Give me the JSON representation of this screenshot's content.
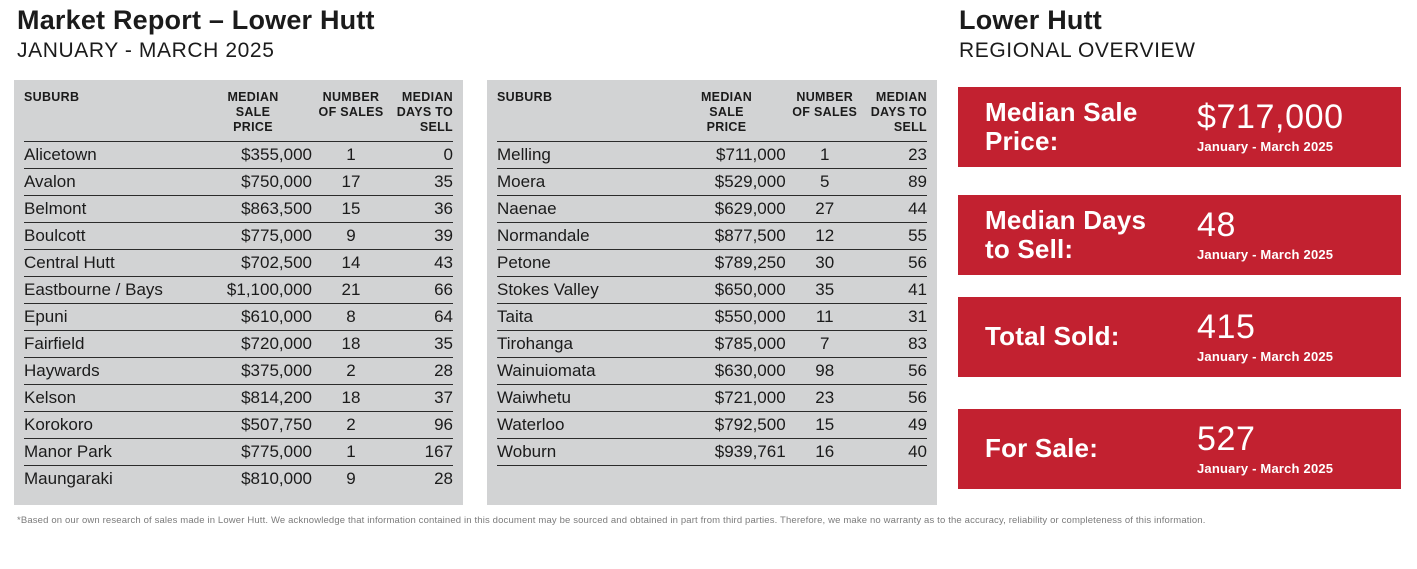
{
  "page": {
    "title": "Market Report – Lower Hutt",
    "subtitle": "JANUARY - MARCH 2025",
    "footnote": "*Based on our own research of sales made in Lower Hutt. We acknowledge that information contained in this document may be sourced and obtained in part from third parties. Therefore, we make no warranty as to the accuracy, reliability or completeness of this information."
  },
  "tables": {
    "headers": {
      "suburb": "SUBURB",
      "price": "MEDIAN\nSALE\nPRICE",
      "sales": "NUMBER\nOF SALES",
      "days": "MEDIAN\nDAYS TO\nSELL"
    },
    "left_rows": [
      {
        "suburb": "Alicetown",
        "price": "$355,000",
        "sales": "1",
        "days": "0"
      },
      {
        "suburb": "Avalon",
        "price": "$750,000",
        "sales": "17",
        "days": "35"
      },
      {
        "suburb": "Belmont",
        "price": "$863,500",
        "sales": "15",
        "days": "36"
      },
      {
        "suburb": "Boulcott",
        "price": "$775,000",
        "sales": "9",
        "days": "39"
      },
      {
        "suburb": "Central Hutt",
        "price": "$702,500",
        "sales": "14",
        "days": "43"
      },
      {
        "suburb": "Eastbourne / Bays",
        "price": "$1,100,000",
        "sales": "21",
        "days": "66"
      },
      {
        "suburb": "Epuni",
        "price": "$610,000",
        "sales": "8",
        "days": "64"
      },
      {
        "suburb": "Fairfield",
        "price": "$720,000",
        "sales": "18",
        "days": "35"
      },
      {
        "suburb": "Haywards",
        "price": "$375,000",
        "sales": "2",
        "days": "28"
      },
      {
        "suburb": "Kelson",
        "price": "$814,200",
        "sales": "18",
        "days": "37"
      },
      {
        "suburb": "Korokoro",
        "price": "$507,750",
        "sales": "2",
        "days": "96"
      },
      {
        "suburb": "Manor Park",
        "price": "$775,000",
        "sales": "1",
        "days": "167"
      },
      {
        "suburb": "Maungaraki",
        "price": "$810,000",
        "sales": "9",
        "days": "28"
      }
    ],
    "right_rows": [
      {
        "suburb": "Melling",
        "price": "$711,000",
        "sales": "1",
        "days": "23"
      },
      {
        "suburb": "Moera",
        "price": "$529,000",
        "sales": "5",
        "days": "89"
      },
      {
        "suburb": "Naenae",
        "price": "$629,000",
        "sales": "27",
        "days": "44"
      },
      {
        "suburb": "Normandale",
        "price": "$877,500",
        "sales": "12",
        "days": "55"
      },
      {
        "suburb": "Petone",
        "price": "$789,250",
        "sales": "30",
        "days": "56"
      },
      {
        "suburb": "Stokes Valley",
        "price": "$650,000",
        "sales": "35",
        "days": "41"
      },
      {
        "suburb": "Taita",
        "price": "$550,000",
        "sales": "11",
        "days": "31"
      },
      {
        "suburb": "Tirohanga",
        "price": "$785,000",
        "sales": "7",
        "days": "83"
      },
      {
        "suburb": "Wainuiomata",
        "price": "$630,000",
        "sales": "98",
        "days": "56"
      },
      {
        "suburb": "Waiwhetu",
        "price": "$721,000",
        "sales": "23",
        "days": "56"
      },
      {
        "suburb": "Waterloo",
        "price": "$792,500",
        "sales": "15",
        "days": "49"
      },
      {
        "suburb": "Woburn",
        "price": "$939,761",
        "sales": "16",
        "days": "40"
      }
    ]
  },
  "overview": {
    "title": "Lower Hutt",
    "subtitle": "REGIONAL OVERVIEW",
    "cards": [
      {
        "label": "Median Sale\nPrice:",
        "value": "$717,000",
        "period": "January - March 2025"
      },
      {
        "label": "Median Days\nto Sell:",
        "value": "48",
        "period": "January - March 2025"
      },
      {
        "label": "Total Sold:",
        "value": "415",
        "period": "January - March 2025"
      },
      {
        "label": "For Sale:",
        "value": "527",
        "period": "January - March 2025"
      }
    ]
  },
  "colors": {
    "accent_red": "#c22130",
    "table_bg": "#d2d3d4",
    "footnote_grey": "#7b7b7b"
  }
}
